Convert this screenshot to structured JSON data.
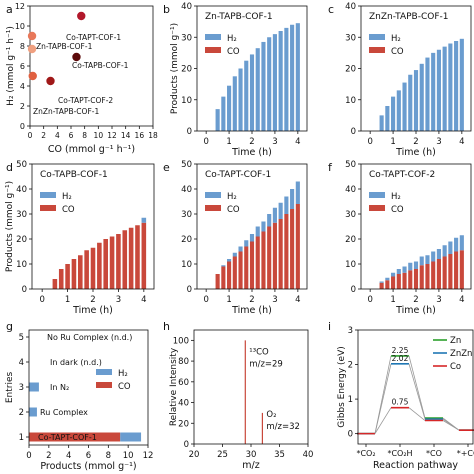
{
  "chart_data": [
    {
      "panel": "a",
      "type": "scatter",
      "xlabel": "CO (mmol g⁻¹ h⁻¹)",
      "ylabel": "H₂ (mmol g⁻¹ h⁻¹)",
      "xlim": [
        0,
        18
      ],
      "ylim": [
        0,
        12
      ],
      "xticks": [
        0,
        2,
        4,
        6,
        8,
        10,
        12,
        14,
        16,
        18
      ],
      "yticks": [
        0,
        2,
        4,
        6,
        8,
        10,
        12
      ],
      "points": [
        {
          "label": "Co-TAPT-COF-1",
          "x": 7.5,
          "y": 11.0,
          "color": "#b2182b"
        },
        {
          "label": "Zn-TAPB-COF-1",
          "x": 0.3,
          "y": 9.0,
          "color": "#e8785a"
        },
        {
          "label": "ZnZn-TAPB-COF-1",
          "x": 0.3,
          "y": 7.7,
          "color": "#f0a080"
        },
        {
          "label": "Co-TAPB-COF-1",
          "x": 6.8,
          "y": 6.9,
          "color": "#5c0a0a"
        },
        {
          "label": "Co-TAPT-COF-2",
          "x": 3.0,
          "y": 4.5,
          "color": "#a01818"
        },
        {
          "label": "",
          "x": 0.4,
          "y": 5.0,
          "color": "#e06040"
        }
      ]
    },
    {
      "panel": "b",
      "type": "bar",
      "title": "Zn-TAPB-COF-1",
      "xlabel": "Time (h)",
      "ylabel": "Products (mmol g⁻¹)",
      "ylim": [
        0,
        40
      ],
      "x": [
        0.5,
        0.75,
        1,
        1.25,
        1.5,
        1.75,
        2,
        2.25,
        2.5,
        2.75,
        3,
        3.25,
        3.5,
        3.75,
        4
      ],
      "series": [
        {
          "name": "H₂",
          "values": [
            7,
            11,
            14.5,
            17.5,
            20,
            22.5,
            24.5,
            26.5,
            28.5,
            30,
            31,
            32,
            33,
            34,
            34.5
          ]
        },
        {
          "name": "CO",
          "values": [
            0,
            0,
            0,
            0,
            0,
            0,
            0,
            0,
            0,
            0,
            0,
            0,
            0,
            0,
            0
          ]
        }
      ]
    },
    {
      "panel": "c",
      "type": "bar",
      "title": "ZnZn-TAPB-COF-1",
      "xlabel": "Time (h)",
      "ylabel": "",
      "ylim": [
        0,
        40
      ],
      "x": [
        0.5,
        0.75,
        1,
        1.25,
        1.5,
        1.75,
        2,
        2.25,
        2.5,
        2.75,
        3,
        3.25,
        3.5,
        3.75,
        4
      ],
      "series": [
        {
          "name": "H₂",
          "values": [
            5,
            8,
            11,
            13,
            15.5,
            18,
            19.5,
            21.5,
            23.5,
            25,
            26,
            27,
            28,
            28.8,
            29.5
          ]
        },
        {
          "name": "CO",
          "values": [
            0,
            0,
            0,
            0,
            0,
            0,
            0,
            0,
            0,
            0,
            0,
            0,
            0,
            0,
            0
          ]
        }
      ]
    },
    {
      "panel": "d",
      "type": "bar",
      "title": "Co-TAPB-COF-1",
      "xlabel": "Time (h)",
      "ylabel": "Products (mmol g⁻¹)",
      "ylim": [
        0,
        50
      ],
      "x": [
        0.5,
        0.75,
        1,
        1.25,
        1.5,
        1.75,
        2,
        2.25,
        2.5,
        2.75,
        3,
        3.25,
        3.5,
        3.75,
        4
      ],
      "series": [
        {
          "name": "H₂",
          "values": [
            0,
            0,
            0,
            0,
            0,
            0,
            0,
            0,
            0,
            0,
            0,
            0,
            0,
            0,
            2
          ]
        },
        {
          "name": "CO",
          "values": [
            4,
            8,
            10,
            12,
            13.5,
            15.5,
            16.5,
            18.5,
            20,
            21,
            22,
            23.5,
            24.5,
            25.5,
            26.5
          ]
        }
      ]
    },
    {
      "panel": "e",
      "type": "bar",
      "title": "Co-TAPT-COF-1",
      "xlabel": "Time (h)",
      "ylabel": "",
      "ylim": [
        0,
        50
      ],
      "x": [
        0.5,
        0.75,
        1,
        1.25,
        1.5,
        1.75,
        2,
        2.25,
        2.5,
        2.75,
        3,
        3.25,
        3.5,
        3.75,
        4
      ],
      "series": [
        {
          "name": "H₂",
          "values": [
            0,
            0.5,
            1,
            1.5,
            2,
            2.5,
            3,
            4,
            4,
            5,
            6,
            6.5,
            7,
            8,
            9
          ]
        },
        {
          "name": "CO",
          "values": [
            6,
            9,
            11,
            13,
            15,
            17,
            19,
            21,
            23,
            25,
            26.5,
            28,
            30,
            32,
            34
          ]
        }
      ]
    },
    {
      "panel": "f",
      "type": "bar",
      "title": "Co-TAPT-COF-2",
      "xlabel": "Time (h)",
      "ylabel": "",
      "ylim": [
        0,
        50
      ],
      "x": [
        0.5,
        0.75,
        1,
        1.25,
        1.5,
        1.75,
        2,
        2.25,
        2.5,
        2.75,
        3,
        3.25,
        3.5,
        3.75,
        4
      ],
      "series": [
        {
          "name": "H₂",
          "values": [
            0.5,
            1,
            1.5,
            2,
            2.5,
            3,
            3,
            3.5,
            3.5,
            4,
            4,
            4.5,
            5,
            5.5,
            6
          ]
        },
        {
          "name": "CO",
          "values": [
            2.5,
            3.5,
            5,
            6,
            6.5,
            7.5,
            8,
            9.5,
            10,
            11,
            12,
            13,
            14,
            15,
            15.5
          ]
        }
      ]
    },
    {
      "panel": "g",
      "type": "bar",
      "orientation": "horizontal",
      "xlabel": "Products (mmol g⁻¹)",
      "ylabel": "Entries",
      "xlim": [
        0,
        12
      ],
      "xticks": [
        0,
        2,
        4,
        6,
        8,
        10,
        12
      ],
      "categories": [
        "1",
        "2",
        "3",
        "4",
        "5"
      ],
      "annotations": [
        "Co-TAPT-COF-1",
        "Ru Complex",
        "In N₂",
        "In dark (n.d.)",
        "No Ru Complex (n.d.)"
      ],
      "series": [
        {
          "name": "H₂",
          "values": [
            2.1,
            0.8,
            1.0,
            0,
            0
          ]
        },
        {
          "name": "CO",
          "values": [
            9.2,
            0,
            0,
            0,
            0
          ]
        }
      ]
    },
    {
      "panel": "h",
      "type": "bar",
      "xlabel": "m/z",
      "ylabel": "Relative Intensity",
      "xlim": [
        20,
        40
      ],
      "ylim": [
        0,
        110
      ],
      "xticks": [
        20,
        25,
        30,
        35,
        40
      ],
      "yticks": [
        0,
        20,
        40,
        60,
        80,
        100
      ],
      "x": [
        29,
        32
      ],
      "values": [
        100,
        30
      ],
      "annotations": [
        "¹³CO m/z=29",
        "O₂ m/z=32"
      ]
    },
    {
      "panel": "i",
      "type": "line",
      "xlabel": "Reaction pathway",
      "ylabel": "Gibbs Energy (eV)",
      "ylim": [
        -0.3,
        3.0
      ],
      "yticks": [
        0,
        1,
        2,
        3
      ],
      "categories": [
        "*CO₂",
        "*CO₂H",
        "*CO",
        "*+CO"
      ],
      "series": [
        {
          "name": "Zn",
          "color": "#2ca02c",
          "values": [
            0,
            2.25,
            0.45,
            0.1
          ]
        },
        {
          "name": "ZnZn",
          "color": "#1f77b4",
          "values": [
            0,
            2.02,
            0.42,
            0.1
          ]
        },
        {
          "name": "Co",
          "color": "#d62728",
          "values": [
            0,
            0.75,
            0.38,
            0.1
          ]
        }
      ],
      "annotations": [
        "2.25",
        "2.02",
        "0.75"
      ]
    }
  ],
  "panel_letters": [
    "a",
    "b",
    "c",
    "d",
    "e",
    "f",
    "g",
    "h",
    "i"
  ],
  "legend": {
    "h2": "H₂",
    "co": "CO"
  },
  "colors": {
    "h2": "#6a9ccf",
    "co": "#c9483b"
  }
}
